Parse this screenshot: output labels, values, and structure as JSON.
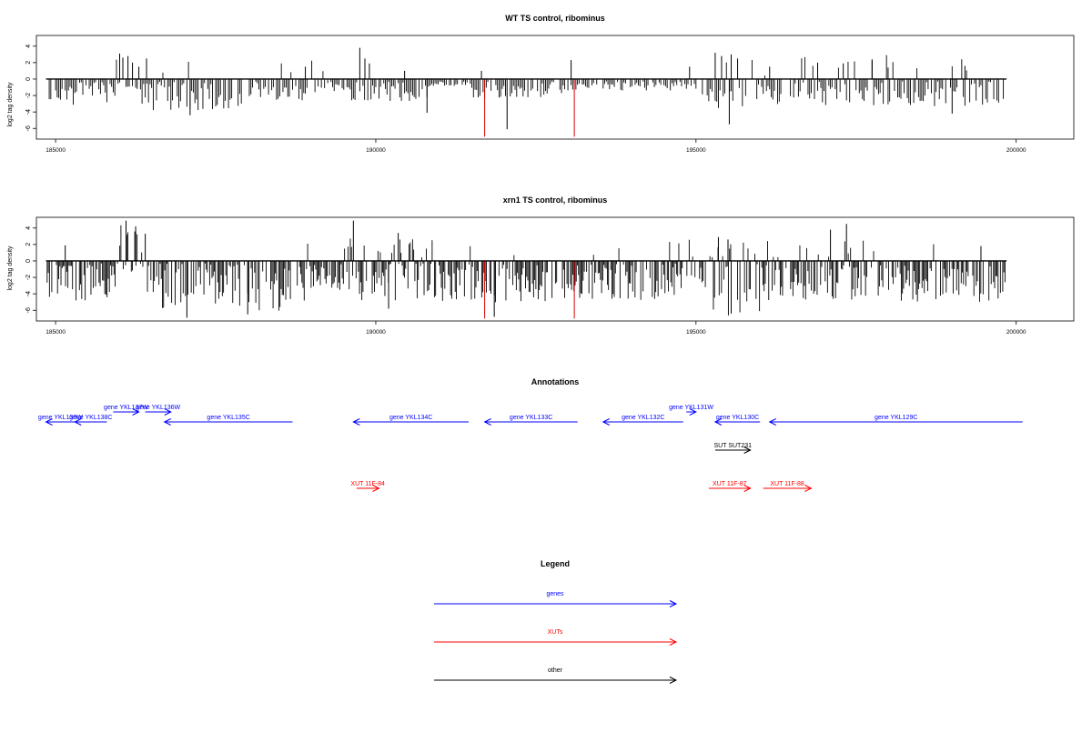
{
  "colors": {
    "background": "#ffffff",
    "gene": "#0000ff",
    "xut": "#ff0000",
    "other": "#000000",
    "marker": "#d40000",
    "bar": "#000000"
  },
  "chart_data": [
    {
      "type": "bar",
      "title": "WT TS control, ribominus",
      "ylabel": "log2 tag density",
      "xlabel": "",
      "xlim": [
        184700,
        200900
      ],
      "ylim": [
        -7.3,
        5.3
      ],
      "xticks": [
        185000,
        190000,
        195000,
        200000
      ],
      "yticks": [
        4,
        2,
        0,
        -2,
        -4,
        -6
      ],
      "xtick_labels": [
        "185000",
        "190000",
        "195000",
        "200000"
      ],
      "ytick_labels": [
        "4",
        "2",
        "0",
        "-2",
        "-4",
        "-6"
      ],
      "baseline": {
        "x": [
          184850,
          199850
        ],
        "y": 0
      },
      "markers": [
        191700,
        193100
      ],
      "marker_min": -7,
      "data_range": [
        184850,
        199850
      ],
      "seed": 11,
      "step": 25,
      "segments": [
        [
          184850,
          185400,
          -2.4,
          0.03
        ],
        [
          185400,
          185950,
          -2.2,
          0.04
        ],
        [
          185950,
          186350,
          -1.2,
          0.1
        ],
        [
          186350,
          187950,
          -2.8,
          0.04
        ],
        [
          187950,
          188900,
          -1.9,
          0.03
        ],
        [
          188900,
          189600,
          -1.2,
          0.05
        ],
        [
          189600,
          190900,
          -1.9,
          0.06
        ],
        [
          190900,
          191500,
          -0.5,
          0.02
        ],
        [
          191500,
          193000,
          -1.7,
          0.04
        ],
        [
          193000,
          194800,
          -0.9,
          0.03
        ],
        [
          194800,
          195150,
          -1.4,
          0.06
        ],
        [
          195150,
          196000,
          -2.6,
          0.15
        ],
        [
          196000,
          198500,
          -2.3,
          0.08
        ],
        [
          198500,
          199850,
          -2.4,
          0.05
        ]
      ],
      "spikes": [
        [
          186000,
          3.1
        ],
        [
          186050,
          2.6
        ],
        [
          186130,
          2.8
        ],
        [
          186200,
          2.0
        ],
        [
          186300,
          1.5
        ],
        [
          186420,
          2.5
        ],
        [
          189750,
          3.8
        ],
        [
          189830,
          2.5
        ],
        [
          189900,
          1.9
        ],
        [
          190450,
          1.0
        ],
        [
          191650,
          1.0
        ],
        [
          193050,
          2.3
        ],
        [
          195300,
          3.2
        ],
        [
          195400,
          2.8
        ],
        [
          195550,
          3.0
        ],
        [
          195650,
          2.5
        ],
        [
          196150,
          1.5
        ],
        [
          196900,
          2.0
        ],
        [
          197300,
          1.9
        ],
        [
          197750,
          2.4
        ],
        [
          198000,
          1.4
        ],
        [
          199200,
          1.6
        ],
        [
          188900,
          1.5
        ],
        [
          194900,
          1.5
        ],
        [
          192050,
          -6.1
        ],
        [
          195520,
          -5.5
        ],
        [
          187100,
          -4.4
        ],
        [
          190800,
          -4.1
        ],
        [
          199000,
          -4.2
        ]
      ]
    },
    {
      "type": "bar",
      "title": "xrn1 TS control, ribominus",
      "ylabel": "log2 tag density",
      "xlabel": "",
      "xlim": [
        184700,
        200900
      ],
      "ylim": [
        -7.3,
        5.3
      ],
      "xticks": [
        185000,
        190000,
        195000,
        200000
      ],
      "yticks": [
        4,
        2,
        0,
        -2,
        -4,
        -6
      ],
      "xtick_labels": [
        "185000",
        "190000",
        "195000",
        "200000"
      ],
      "ytick_labels": [
        "4",
        "2",
        "0",
        "-2",
        "-4",
        "-6"
      ],
      "baseline": {
        "x": [
          184850,
          199850
        ],
        "y": 0
      },
      "markers": [
        191700,
        193100
      ],
      "marker_min": -7,
      "data_range": [
        184850,
        199850
      ],
      "seed": 23,
      "step": 18,
      "segments": [
        [
          184850,
          185950,
          -3.6,
          0.0
        ],
        [
          185950,
          186350,
          -0.8,
          0.75
        ],
        [
          186350,
          188900,
          -4.6,
          0.01
        ],
        [
          188900,
          189500,
          -2.6,
          0.04
        ],
        [
          189500,
          191000,
          -3.6,
          0.2
        ],
        [
          191000,
          193000,
          -3.8,
          0.06
        ],
        [
          193000,
          194800,
          -3.6,
          0.05
        ],
        [
          194800,
          195250,
          -2.9,
          0.3
        ],
        [
          195250,
          196000,
          -5.2,
          0.3
        ],
        [
          196000,
          198000,
          -3.6,
          0.12
        ],
        [
          198000,
          199850,
          -3.8,
          0.03
        ]
      ],
      "spikes": [
        [
          185150,
          1.9
        ],
        [
          186100,
          4.9
        ],
        [
          186250,
          4.2
        ],
        [
          186400,
          3.3
        ],
        [
          189650,
          4.9
        ],
        [
          190350,
          3.4
        ],
        [
          195350,
          2.9
        ],
        [
          195500,
          2.6
        ],
        [
          197100,
          3.8
        ],
        [
          197350,
          4.5
        ],
        [
          199450,
          1.8
        ],
        [
          187050,
          -6.9
        ],
        [
          188000,
          -6.5
        ],
        [
          191850,
          -6.8
        ],
        [
          195550,
          -6.4
        ],
        [
          190200,
          -5.8
        ]
      ]
    }
  ],
  "annotations": {
    "title": "Annotations",
    "features": [
      {
        "label": "gene YKL139W",
        "type": "gene",
        "start": 185300,
        "end": 184850
      },
      {
        "label": "gene YKL138C",
        "type": "gene",
        "start": 185800,
        "end": 185300
      },
      {
        "label": "gene YKL137W",
        "type": "gene",
        "start": 185900,
        "end": 186300
      },
      {
        "label": "gene YKL136W",
        "type": "gene",
        "start": 186400,
        "end": 186800
      },
      {
        "label": "gene YKL135C",
        "type": "gene",
        "start": 188700,
        "end": 186700
      },
      {
        "label": "gene YKL134C",
        "type": "gene",
        "start": 191450,
        "end": 189650
      },
      {
        "label": "gene YKL133C",
        "type": "gene",
        "start": 193150,
        "end": 191700
      },
      {
        "label": "gene YKL132C",
        "type": "gene",
        "start": 194800,
        "end": 193550
      },
      {
        "label": "gene YKL131W",
        "type": "gene",
        "start": 194850,
        "end": 195000
      },
      {
        "label": "gene YKL130C",
        "type": "gene",
        "start": 196000,
        "end": 195300
      },
      {
        "label": "gene YKL129C",
        "type": "gene",
        "start": 200100,
        "end": 196150
      },
      {
        "label": "SUT SUT231",
        "type": "other",
        "start": 195300,
        "end": 195850
      },
      {
        "label": "XUT 11F-84",
        "type": "xut",
        "start": 189700,
        "end": 190050
      },
      {
        "label": "XUT 11F-87",
        "type": "xut",
        "start": 195200,
        "end": 195850
      },
      {
        "label": "XUT 11F-88",
        "type": "xut",
        "start": 196050,
        "end": 196800
      }
    ]
  },
  "legend": {
    "title": "Legend",
    "items": [
      {
        "label": "genes",
        "type": "gene"
      },
      {
        "label": "XUTs",
        "type": "xut"
      },
      {
        "label": "other",
        "type": "other"
      }
    ]
  }
}
